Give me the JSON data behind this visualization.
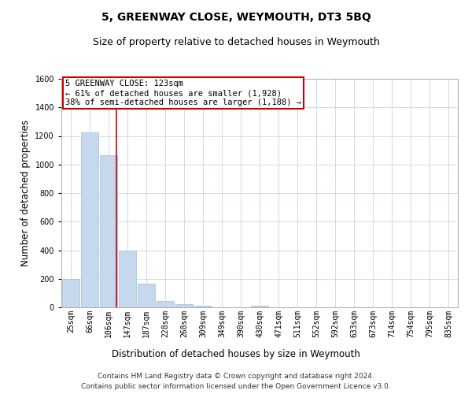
{
  "title": "5, GREENWAY CLOSE, WEYMOUTH, DT3 5BQ",
  "subtitle": "Size of property relative to detached houses in Weymouth",
  "xlabel": "Distribution of detached houses by size in Weymouth",
  "ylabel": "Number of detached properties",
  "categories": [
    "25sqm",
    "66sqm",
    "106sqm",
    "147sqm",
    "187sqm",
    "228sqm",
    "268sqm",
    "309sqm",
    "349sqm",
    "390sqm",
    "430sqm",
    "471sqm",
    "511sqm",
    "552sqm",
    "592sqm",
    "633sqm",
    "673sqm",
    "714sqm",
    "754sqm",
    "795sqm",
    "835sqm"
  ],
  "values": [
    200,
    1225,
    1065,
    400,
    165,
    45,
    20,
    10,
    0,
    0,
    10,
    0,
    0,
    0,
    0,
    0,
    0,
    0,
    0,
    0,
    0
  ],
  "bar_color": "#c5d8ed",
  "bar_edge_color": "#a8c4dc",
  "vline_x": 2.42,
  "annotation_line1": "5 GREENWAY CLOSE: 123sqm",
  "annotation_line2": "← 61% of detached houses are smaller (1,928)",
  "annotation_line3": "38% of semi-detached houses are larger (1,188) →",
  "annotation_box_color": "#ffffff",
  "annotation_box_edge": "#cc0000",
  "vline_color": "#cc0000",
  "ylim": [
    0,
    1600
  ],
  "yticks": [
    0,
    200,
    400,
    600,
    800,
    1000,
    1200,
    1400,
    1600
  ],
  "footer1": "Contains HM Land Registry data © Crown copyright and database right 2024.",
  "footer2": "Contains public sector information licensed under the Open Government Licence v3.0.",
  "background_color": "#ffffff",
  "grid_color": "#c8d4e0",
  "title_fontsize": 10,
  "subtitle_fontsize": 9,
  "axis_label_fontsize": 8.5,
  "tick_fontsize": 7,
  "annotation_fontsize": 7.5,
  "footer_fontsize": 6.5
}
